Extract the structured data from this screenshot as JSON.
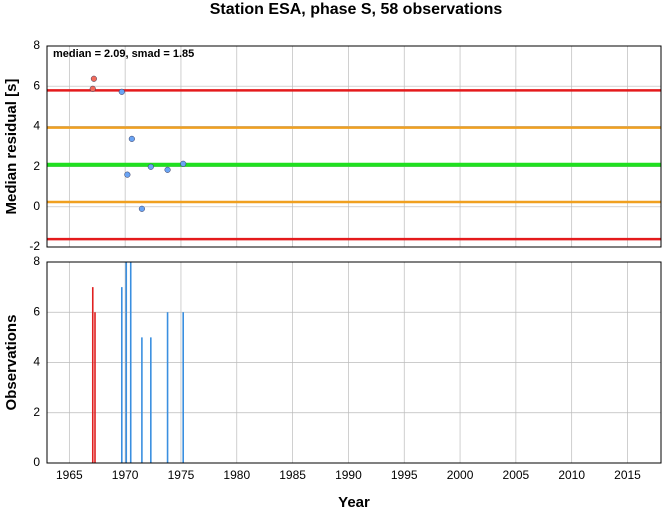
{
  "title": "Station ESA, phase S, 58 observations",
  "chart_data": [
    {
      "type": "scatter",
      "y_label": "Median residual [s]",
      "annotation": "median = 2.09, smad = 1.85",
      "xlim": [
        1963,
        2018
      ],
      "xticks": [
        1965,
        1970,
        1975,
        1980,
        1985,
        1990,
        1995,
        2000,
        2005,
        2010,
        2015
      ],
      "ylim": [
        -2,
        8
      ],
      "yticks": [
        -2,
        0,
        2,
        4,
        6,
        8
      ],
      "grid": true,
      "reference_lines": [
        {
          "value": 5.79,
          "color": "#e41a1c"
        },
        {
          "value": 3.94,
          "color": "#f0a020"
        },
        {
          "value": 2.09,
          "color": "#20e020"
        },
        {
          "value": 0.24,
          "color": "#f0a020"
        },
        {
          "value": -1.61,
          "color": "#e41a1c"
        }
      ],
      "series": [
        {
          "color": "#f26b5b",
          "x": [
            1967.2,
            1967.1
          ],
          "values": [
            6.37,
            5.87
          ]
        },
        {
          "color": "#6aa4f4",
          "x": [
            1969.7,
            1970.6,
            1970.2,
            1971.5,
            1972.3,
            1973.8,
            1975.2
          ],
          "values": [
            5.72,
            3.38,
            1.6,
            -0.1,
            1.99,
            1.84,
            2.14
          ]
        }
      ]
    },
    {
      "type": "bar",
      "y_label": "Observations",
      "x_label": "Year",
      "xlim": [
        1963,
        2018
      ],
      "xticks": [
        1965,
        1970,
        1975,
        1980,
        1985,
        1990,
        1995,
        2000,
        2005,
        2010,
        2015
      ],
      "ylim": [
        0,
        8
      ],
      "yticks": [
        0,
        2,
        4,
        6,
        8
      ],
      "grid": true,
      "series": [
        {
          "color": "#e02020",
          "x": [
            1967.1,
            1967.3
          ],
          "values": [
            7,
            6
          ]
        },
        {
          "color": "#3a8fe0",
          "x": [
            1969.7,
            1970.1,
            1970.5,
            1971.5,
            1972.3,
            1973.8,
            1975.2
          ],
          "values": [
            7,
            8,
            8,
            5,
            5,
            6,
            6
          ]
        }
      ]
    }
  ]
}
